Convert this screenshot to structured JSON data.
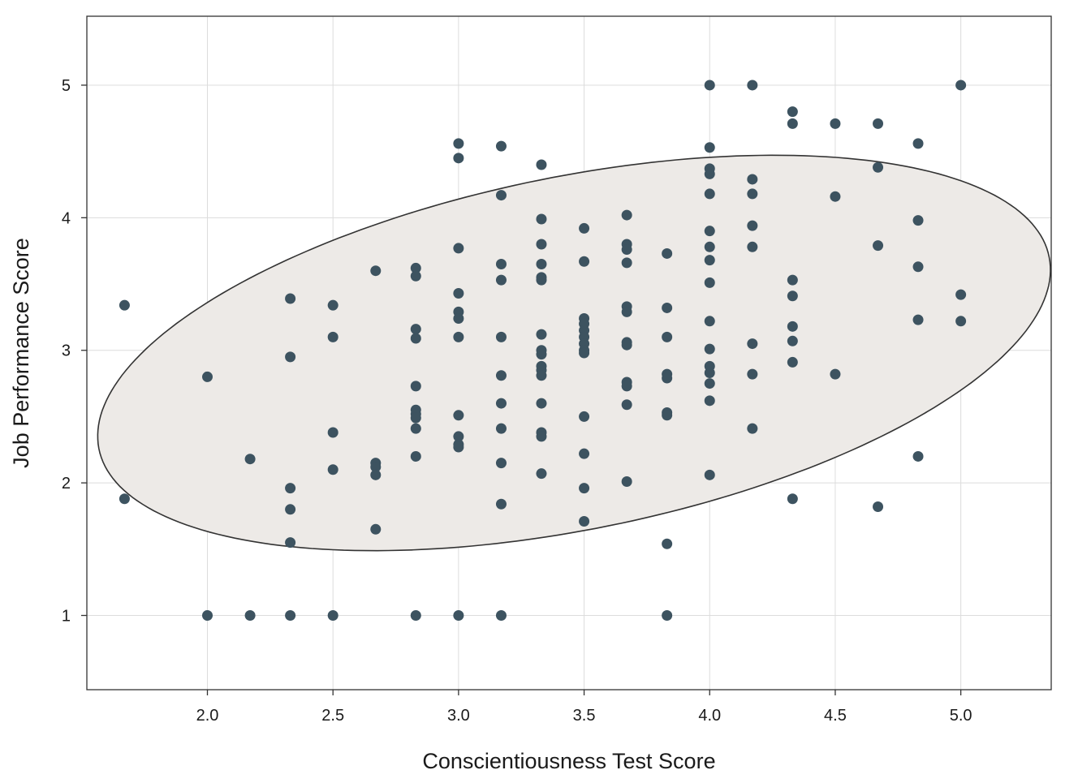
{
  "chart_data": {
    "type": "scatter",
    "title": "",
    "xlabel": "Conscientiousness Test Score",
    "ylabel": "Job Performance Score",
    "xlim": [
      1.52,
      5.36
    ],
    "ylim": [
      0.44,
      5.52
    ],
    "xticks": [
      2.0,
      2.5,
      3.0,
      3.5,
      4.0,
      4.5,
      5.0
    ],
    "xtick_labels": [
      "2.0",
      "2.5",
      "3.0",
      "3.5",
      "4.0",
      "4.5",
      "5.0"
    ],
    "yticks": [
      1,
      2,
      3,
      4,
      5
    ],
    "ytick_labels": [
      "1",
      "2",
      "3",
      "4",
      "5"
    ],
    "grid": true,
    "colors": {
      "point": "#3d5360",
      "ellipse_fill": "#edeae7",
      "ellipse_stroke": "#333333",
      "grid": "#dcdcdc",
      "axis": "#333333"
    },
    "ellipse": {
      "center": [
        3.46,
        2.98
      ],
      "radius_major": 2.07,
      "radius_minor": 1.24,
      "rotation_deg": 30
    },
    "points": [
      [
        1.67,
        3.34
      ],
      [
        1.67,
        1.88
      ],
      [
        2.0,
        2.8
      ],
      [
        2.0,
        1.0
      ],
      [
        2.17,
        2.18
      ],
      [
        2.17,
        1.0
      ],
      [
        2.33,
        3.39
      ],
      [
        2.33,
        2.95
      ],
      [
        2.33,
        1.96
      ],
      [
        2.33,
        1.8
      ],
      [
        2.33,
        1.55
      ],
      [
        2.33,
        1.0
      ],
      [
        2.5,
        3.34
      ],
      [
        2.5,
        3.1
      ],
      [
        2.5,
        2.38
      ],
      [
        2.5,
        2.1
      ],
      [
        2.5,
        1.0
      ],
      [
        2.67,
        3.6
      ],
      [
        2.67,
        2.15
      ],
      [
        2.67,
        2.12
      ],
      [
        2.67,
        2.06
      ],
      [
        2.67,
        1.65
      ],
      [
        2.83,
        3.62
      ],
      [
        2.83,
        3.56
      ],
      [
        2.83,
        3.16
      ],
      [
        2.83,
        3.09
      ],
      [
        2.83,
        2.73
      ],
      [
        2.83,
        2.55
      ],
      [
        2.83,
        2.52
      ],
      [
        2.83,
        2.49
      ],
      [
        2.83,
        2.41
      ],
      [
        2.83,
        2.2
      ],
      [
        2.83,
        1.0
      ],
      [
        3.0,
        4.56
      ],
      [
        3.0,
        4.45
      ],
      [
        3.0,
        3.77
      ],
      [
        3.0,
        3.43
      ],
      [
        3.0,
        3.29
      ],
      [
        3.0,
        3.24
      ],
      [
        3.0,
        3.1
      ],
      [
        3.0,
        2.51
      ],
      [
        3.0,
        2.35
      ],
      [
        3.0,
        2.29
      ],
      [
        3.0,
        2.27
      ],
      [
        3.0,
        1.0
      ],
      [
        3.17,
        4.54
      ],
      [
        3.17,
        4.17
      ],
      [
        3.17,
        3.65
      ],
      [
        3.17,
        3.53
      ],
      [
        3.17,
        3.1
      ],
      [
        3.17,
        2.81
      ],
      [
        3.17,
        2.6
      ],
      [
        3.17,
        2.41
      ],
      [
        3.17,
        2.15
      ],
      [
        3.17,
        1.84
      ],
      [
        3.17,
        1.0
      ],
      [
        3.33,
        4.4
      ],
      [
        3.33,
        3.99
      ],
      [
        3.33,
        3.8
      ],
      [
        3.33,
        3.65
      ],
      [
        3.33,
        3.55
      ],
      [
        3.33,
        3.53
      ],
      [
        3.33,
        3.12
      ],
      [
        3.33,
        3.0
      ],
      [
        3.33,
        2.97
      ],
      [
        3.33,
        2.88
      ],
      [
        3.33,
        2.85
      ],
      [
        3.33,
        2.81
      ],
      [
        3.33,
        2.6
      ],
      [
        3.33,
        2.38
      ],
      [
        3.33,
        2.35
      ],
      [
        3.33,
        2.07
      ],
      [
        3.5,
        3.92
      ],
      [
        3.5,
        3.67
      ],
      [
        3.5,
        3.24
      ],
      [
        3.5,
        3.2
      ],
      [
        3.5,
        3.15
      ],
      [
        3.5,
        3.1
      ],
      [
        3.5,
        3.05
      ],
      [
        3.5,
        3.0
      ],
      [
        3.5,
        2.98
      ],
      [
        3.5,
        2.5
      ],
      [
        3.5,
        2.22
      ],
      [
        3.5,
        1.96
      ],
      [
        3.5,
        1.71
      ],
      [
        3.67,
        4.02
      ],
      [
        3.67,
        3.8
      ],
      [
        3.67,
        3.76
      ],
      [
        3.67,
        3.66
      ],
      [
        3.67,
        3.33
      ],
      [
        3.67,
        3.29
      ],
      [
        3.67,
        3.06
      ],
      [
        3.67,
        3.04
      ],
      [
        3.67,
        2.76
      ],
      [
        3.67,
        2.73
      ],
      [
        3.67,
        2.59
      ],
      [
        3.67,
        2.01
      ],
      [
        3.83,
        3.73
      ],
      [
        3.83,
        3.32
      ],
      [
        3.83,
        3.1
      ],
      [
        3.83,
        2.82
      ],
      [
        3.83,
        2.79
      ],
      [
        3.83,
        2.53
      ],
      [
        3.83,
        2.51
      ],
      [
        3.83,
        1.54
      ],
      [
        3.83,
        1.0
      ],
      [
        4.0,
        5.0
      ],
      [
        4.0,
        4.53
      ],
      [
        4.0,
        4.37
      ],
      [
        4.0,
        4.33
      ],
      [
        4.0,
        4.18
      ],
      [
        4.0,
        3.9
      ],
      [
        4.0,
        3.78
      ],
      [
        4.0,
        3.68
      ],
      [
        4.0,
        3.51
      ],
      [
        4.0,
        3.22
      ],
      [
        4.0,
        3.01
      ],
      [
        4.0,
        2.88
      ],
      [
        4.0,
        2.83
      ],
      [
        4.0,
        2.75
      ],
      [
        4.0,
        2.62
      ],
      [
        4.0,
        2.06
      ],
      [
        4.17,
        5.0
      ],
      [
        4.17,
        4.29
      ],
      [
        4.17,
        4.18
      ],
      [
        4.17,
        3.94
      ],
      [
        4.17,
        3.78
      ],
      [
        4.17,
        3.05
      ],
      [
        4.17,
        2.82
      ],
      [
        4.17,
        2.41
      ],
      [
        4.33,
        4.8
      ],
      [
        4.33,
        4.71
      ],
      [
        4.33,
        3.53
      ],
      [
        4.33,
        3.41
      ],
      [
        4.33,
        3.18
      ],
      [
        4.33,
        3.07
      ],
      [
        4.33,
        2.91
      ],
      [
        4.33,
        1.88
      ],
      [
        4.5,
        4.71
      ],
      [
        4.5,
        4.16
      ],
      [
        4.5,
        2.82
      ],
      [
        4.67,
        4.71
      ],
      [
        4.67,
        4.38
      ],
      [
        4.67,
        3.79
      ],
      [
        4.67,
        1.82
      ],
      [
        4.83,
        4.56
      ],
      [
        4.83,
        3.98
      ],
      [
        4.83,
        3.63
      ],
      [
        4.83,
        3.23
      ],
      [
        4.83,
        2.2
      ],
      [
        5.0,
        5.0
      ],
      [
        5.0,
        3.42
      ],
      [
        5.0,
        3.22
      ]
    ]
  }
}
